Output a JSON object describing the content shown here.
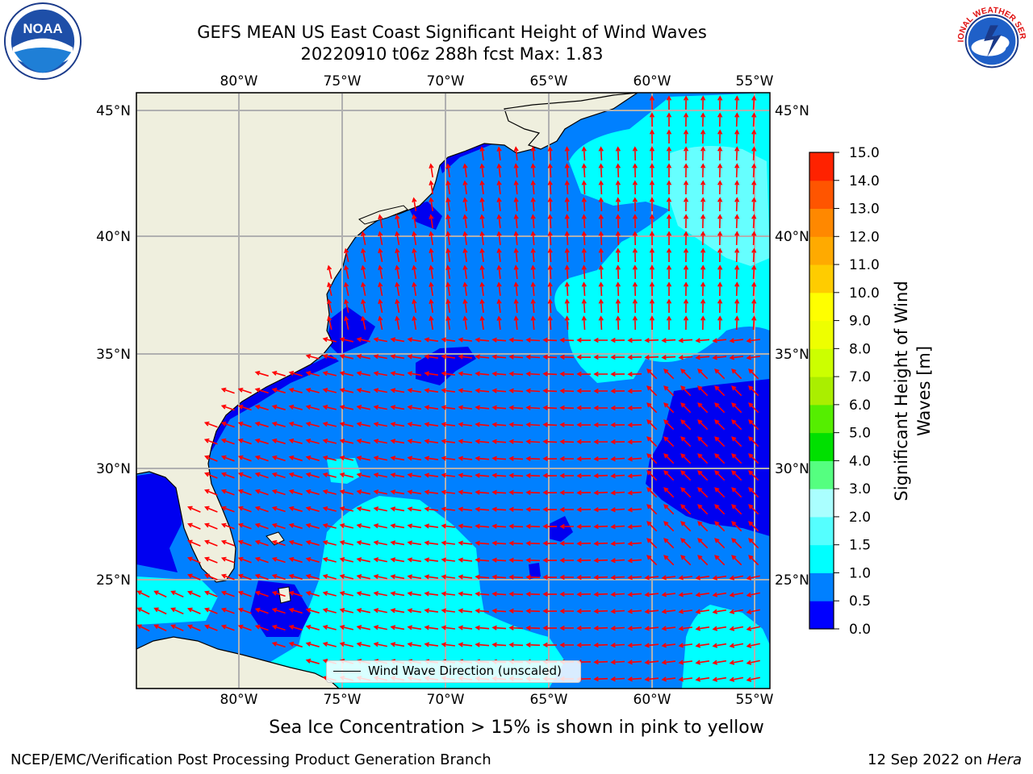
{
  "title": {
    "line1": "GEFS MEAN US East Coast Significant Height of Wind Waves",
    "line2": "20220910 t06z 288h fcst   Max: 1.83"
  },
  "map": {
    "lon_labels": [
      "80°W",
      "75°W",
      "70°W",
      "65°W",
      "60°W",
      "55°W"
    ],
    "lat_labels": [
      "45°N",
      "40°N",
      "35°N",
      "30°N",
      "25°N"
    ],
    "legend_label": "Wind Wave Direction (unscaled)",
    "colors": {
      "land": "#efefde",
      "wave_0_0": "#0000f0",
      "wave_0_5": "#0080ff",
      "wave_1_0": "#00ffff",
      "wave_1_5": "#66ffff",
      "arrow": "#ff0000",
      "grid": "#b0b0b0"
    }
  },
  "colorbar": {
    "label": "Significant Height of Wind Waves [m]",
    "label_line1": "Significant Height of Wind",
    "label_line2": "Waves [m]",
    "ticks": [
      "0.0",
      "0.5",
      "1.0",
      "1.5",
      "2.0",
      "3.0",
      "4.0",
      "5.0",
      "6.0",
      "7.0",
      "8.0",
      "9.0",
      "10.0",
      "11.0",
      "12.0",
      "13.0",
      "14.0",
      "15.0"
    ],
    "colors": [
      "#0000ff",
      "#0080ff",
      "#00ffff",
      "#55ffff",
      "#aaffff",
      "#55ff80",
      "#00e000",
      "#55ee00",
      "#aaee00",
      "#ccff00",
      "#eeff00",
      "#ffff00",
      "#ffcc00",
      "#ffaa00",
      "#ff8800",
      "#ff5500",
      "#ff2200",
      "#ff0000"
    ]
  },
  "ice_note": "Sea Ice Concentration > 15% is shown in pink to yellow",
  "footer": {
    "left": "NCEP/EMC/Verification Post Processing Product Generation Branch",
    "right_date": "12 Sep 2022 on ",
    "right_machine": "Hera"
  },
  "logos": {
    "noaa_text": "NOAA",
    "nws_text": "NATIONAL WEATHER SERVICE"
  }
}
